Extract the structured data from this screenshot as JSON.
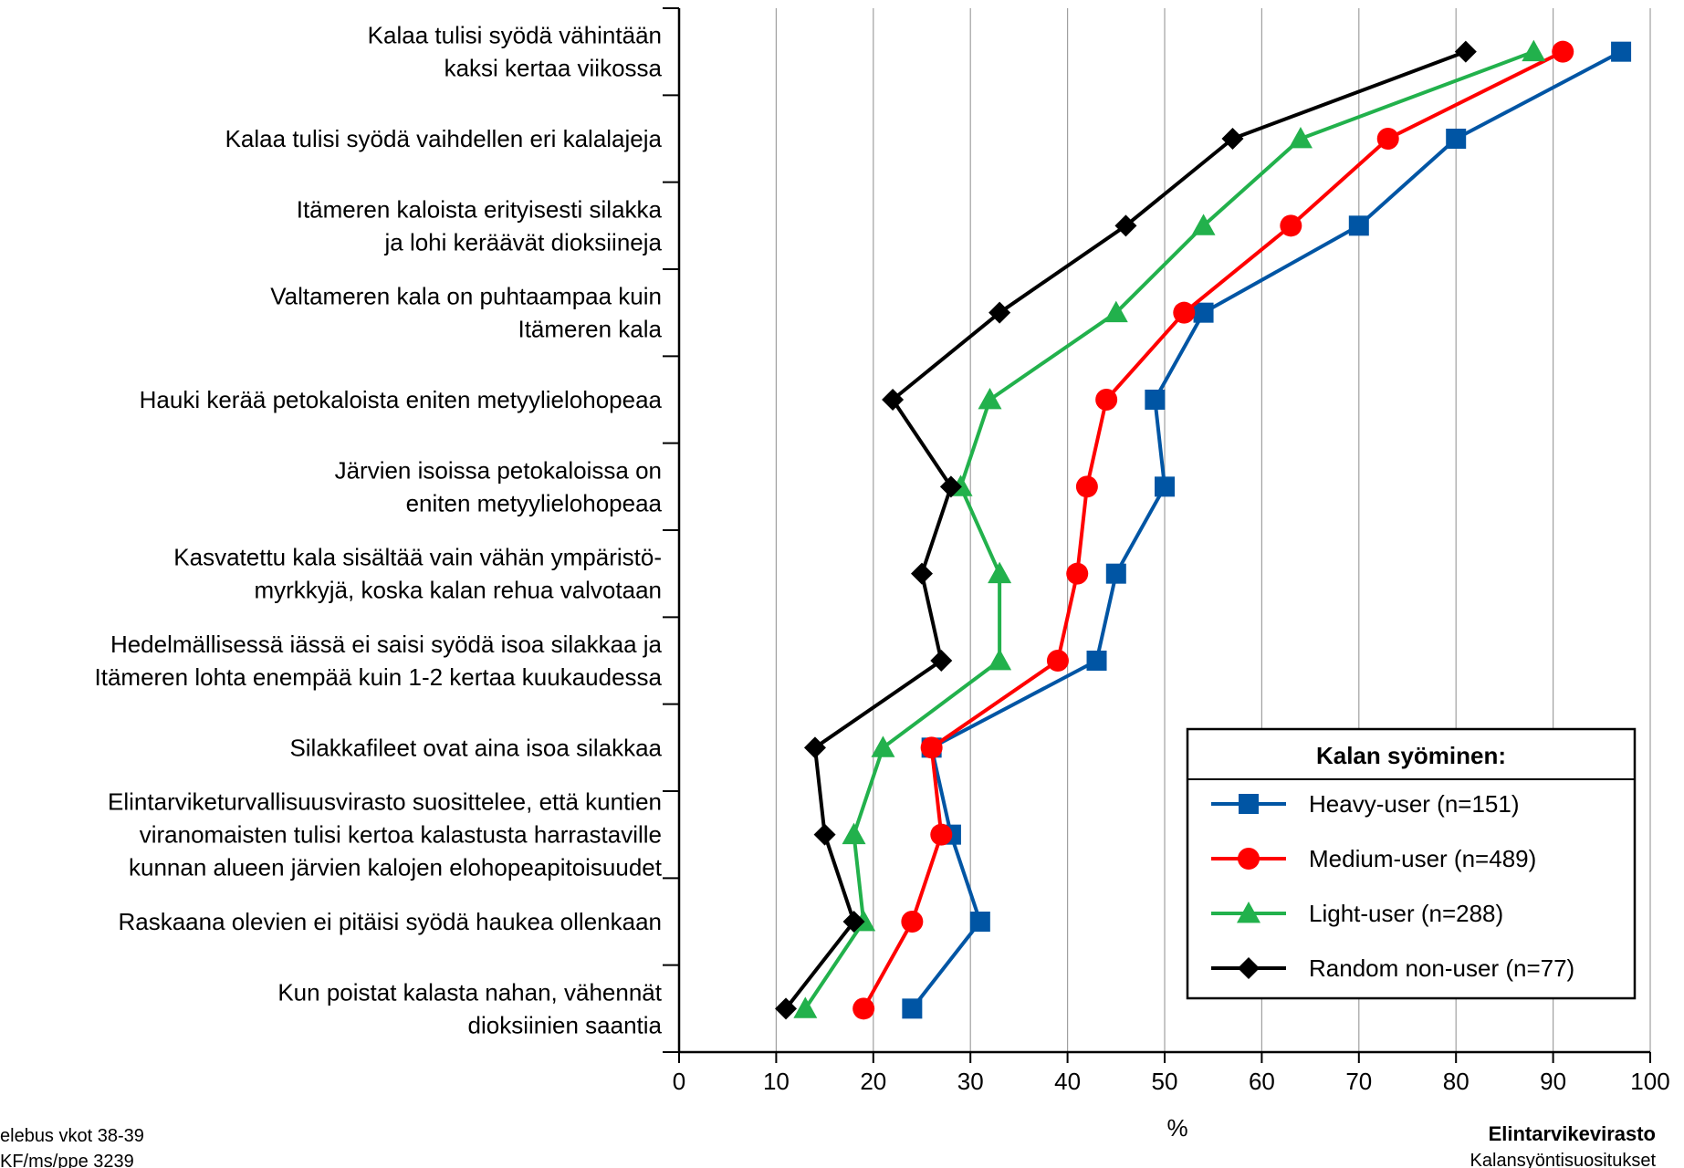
{
  "chart_data": {
    "type": "line",
    "orientation": "horizontal",
    "xlabel": "%",
    "xlim": [
      0,
      100
    ],
    "xticks": [
      "0",
      "10",
      "20",
      "30",
      "40",
      "50",
      "60",
      "70",
      "80",
      "90",
      "100"
    ],
    "grid": "vertical",
    "legend_placement": "bottom-right",
    "legend_title": "Kalan syöminen:",
    "categories": [
      [
        "Kalaa tulisi syödä vähintään",
        "kaksi kertaa viikossa"
      ],
      [
        "Kalaa tulisi syödä vaihdellen eri kalalajeja"
      ],
      [
        "Itämeren kaloista erityisesti silakka",
        "ja lohi keräävät dioksiineja"
      ],
      [
        "Valtameren kala on puhtaampaa kuin",
        "Itämeren kala"
      ],
      [
        "Hauki kerää petokaloista eniten metyylielohopeaa"
      ],
      [
        "Järvien isoissa petokaloissa on",
        "eniten metyylielohopeaa"
      ],
      [
        "Kasvatettu kala sisältää vain vähän ympäristö-",
        "myrkkyjä, koska kalan rehua valvotaan"
      ],
      [
        "Hedelmällisessä iässä ei saisi syödä isoa silakkaa ja",
        "Itämeren lohta enempää kuin 1-2 kertaa kuukaudessa"
      ],
      [
        "Silakkafileet ovat aina isoa silakkaa"
      ],
      [
        "Elintarviketurvallisuusvirasto suosittelee, että kuntien",
        "viranomaisten tulisi kertoa kalastusta harrastaville",
        "kunnan alueen järvien kalojen elohopeapitoisuudet"
      ],
      [
        "Raskaana olevien ei pitäisi syödä haukea ollenkaan"
      ],
      [
        "Kun poistat kalasta nahan, vähennät",
        "dioksiinien saantia"
      ]
    ],
    "series": [
      {
        "name": "Heavy-user (n=151)",
        "color": "#0055a4",
        "marker": "square",
        "values": [
          97,
          80,
          70,
          54,
          49,
          50,
          45,
          43,
          26,
          28,
          31,
          24
        ]
      },
      {
        "name": "Medium-user (n=489)",
        "color": "#ff0000",
        "marker": "circle",
        "values": [
          91,
          73,
          63,
          52,
          44,
          42,
          41,
          39,
          26,
          27,
          24,
          19
        ]
      },
      {
        "name": "Light-user (n=288)",
        "color": "#22b14c",
        "marker": "triangle",
        "values": [
          88,
          64,
          54,
          45,
          32,
          29,
          33,
          33,
          21,
          18,
          19,
          13
        ]
      },
      {
        "name": "Random non-user (n=77)",
        "color": "#000000",
        "marker": "diamond",
        "values": [
          81,
          57,
          46,
          33,
          22,
          28,
          25,
          27,
          14,
          15,
          18,
          11
        ]
      }
    ]
  },
  "footer": {
    "left_line1": "elebus vkot 38-39",
    "left_line2": "KF/ms/ppe  3239",
    "right_title": "Elintarvikevirasto",
    "right_subtitle": "Kalansyöntisuositukset"
  }
}
